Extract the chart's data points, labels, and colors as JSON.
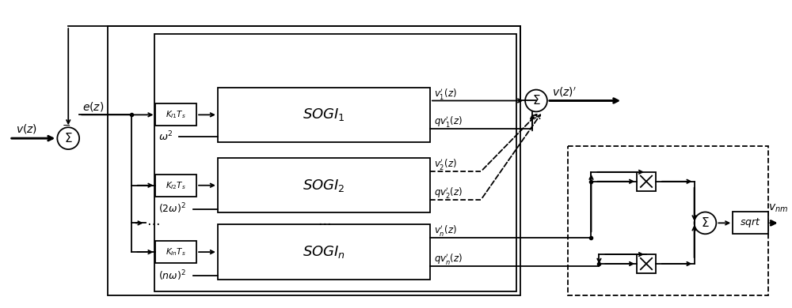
{
  "bg_color": "#ffffff",
  "line_color": "#000000",
  "fig_width": 10.0,
  "fig_height": 3.9,
  "dpi": 100
}
